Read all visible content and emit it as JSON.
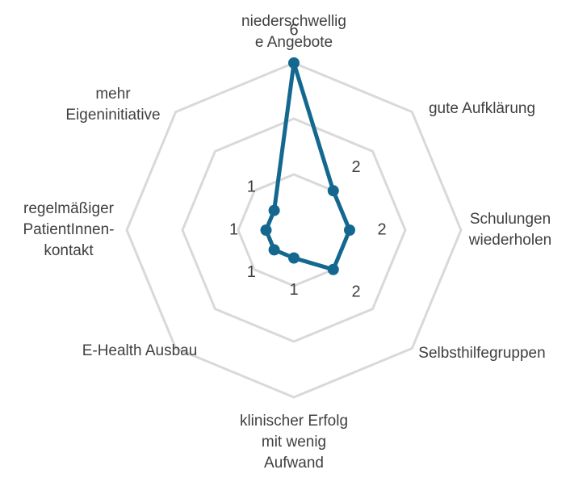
{
  "chart_data": {
    "type": "radar",
    "categories": [
      "niederschwellige Angebote",
      "gute Aufklärung",
      "Schulungen wiederholen",
      "Selbsthilfegruppen",
      "klinischer Erfolg mit wenig Aufwand",
      "E-Health Ausbau",
      "regelmäßiger PatientInnen-kontakt",
      "mehr Eigeninitiative"
    ],
    "values": [
      6,
      2,
      2,
      2,
      1,
      1,
      1,
      1
    ],
    "color": "#14688f",
    "ylim": [
      0,
      6
    ],
    "yticks": [
      2,
      4,
      6
    ],
    "grid": true
  }
}
